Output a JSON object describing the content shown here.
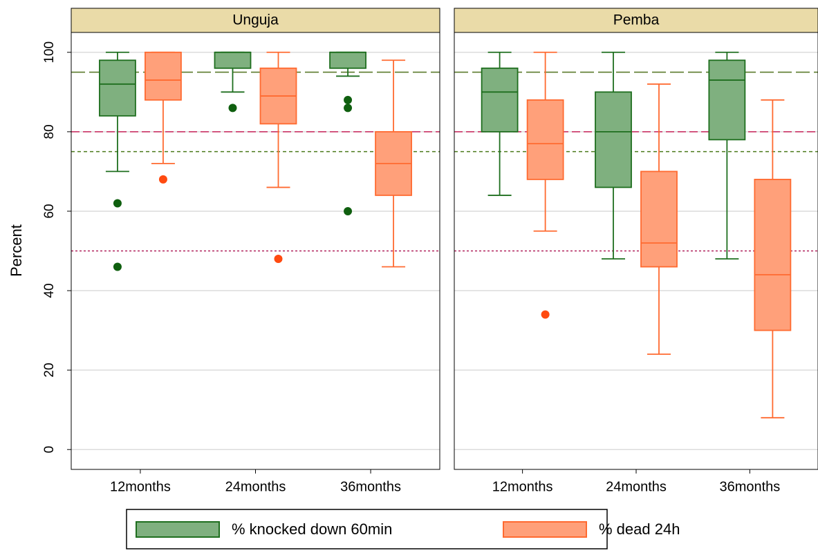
{
  "chart_data": {
    "type": "box",
    "ylabel": "Percent",
    "ylim": [
      -5,
      105
    ],
    "yticks": [
      0,
      20,
      40,
      60,
      80,
      100
    ],
    "grid": true,
    "legend": "bottom",
    "series": [
      {
        "name": "% knocked down 60min",
        "color": "#7fb07f",
        "edge": "#1e6e1e",
        "outlier_color": "#0f5f0f"
      },
      {
        "name": "% dead 24h",
        "color": "#ffa07a",
        "edge": "#ff6a30",
        "outlier_color": "#ff4a10"
      }
    ],
    "reference_lines": [
      {
        "value": 95,
        "color": "#5a7a2a",
        "dash": "long"
      },
      {
        "value": 80,
        "color": "#c8235a",
        "dash": "medium"
      },
      {
        "value": 75,
        "color": "#4a7a1a",
        "dash": "short"
      },
      {
        "value": 50,
        "color": "#b0205a",
        "dash": "dotted"
      }
    ],
    "panels": [
      {
        "title": "Unguja",
        "categories": [
          "12months",
          "24months",
          "36months"
        ],
        "series": [
          {
            "boxes": [
              {
                "min": 70,
                "q1": 84,
                "median": 92,
                "q3": 98,
                "max": 100,
                "outliers": [
                  62,
                  46
                ]
              },
              {
                "min": 90,
                "q1": 96,
                "median": 100,
                "q3": 100,
                "max": 100,
                "outliers": [
                  86
                ]
              },
              {
                "min": 94,
                "q1": 96,
                "median": 100,
                "q3": 100,
                "max": 100,
                "outliers": [
                  88,
                  86,
                  60
                ]
              }
            ]
          },
          {
            "boxes": [
              {
                "min": 72,
                "q1": 88,
                "median": 93,
                "q3": 100,
                "max": 100,
                "outliers": [
                  68
                ]
              },
              {
                "min": 66,
                "q1": 82,
                "median": 89,
                "q3": 96,
                "max": 100,
                "outliers": [
                  48
                ]
              },
              {
                "min": 46,
                "q1": 64,
                "median": 72,
                "q3": 80,
                "max": 98,
                "outliers": []
              }
            ]
          }
        ]
      },
      {
        "title": "Pemba",
        "categories": [
          "12months",
          "24months",
          "36months"
        ],
        "series": [
          {
            "boxes": [
              {
                "min": 64,
                "q1": 80,
                "median": 90,
                "q3": 96,
                "max": 100,
                "outliers": []
              },
              {
                "min": 48,
                "q1": 66,
                "median": 80,
                "q3": 90,
                "max": 100,
                "outliers": []
              },
              {
                "min": 48,
                "q1": 78,
                "median": 93,
                "q3": 98,
                "max": 100,
                "outliers": []
              }
            ]
          },
          {
            "boxes": [
              {
                "min": 55,
                "q1": 68,
                "median": 77,
                "q3": 88,
                "max": 100,
                "outliers": [
                  34
                ]
              },
              {
                "min": 24,
                "q1": 46,
                "median": 52,
                "q3": 70,
                "max": 92,
                "outliers": []
              },
              {
                "min": 8,
                "q1": 30,
                "median": 44,
                "q3": 68,
                "max": 88,
                "outliers": []
              }
            ]
          }
        ]
      }
    ]
  }
}
